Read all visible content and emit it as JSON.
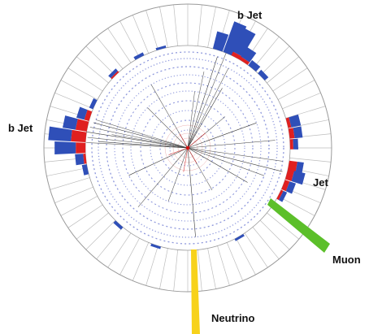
{
  "labels": {
    "bjet_top": "b Jet",
    "bjet_left": "b Jet",
    "jet_right": "Jet",
    "muon": "Muon",
    "neutrino": "Neutrino"
  },
  "colors": {
    "calo_blue": "#2f4fb8",
    "calo_red": "#e02020",
    "muon": "#5cbf2a",
    "neutrino": "#f7d21b",
    "grid": "#bdbdbd",
    "track_dots": "#7a86d6",
    "vertex": "#d01010"
  }
}
